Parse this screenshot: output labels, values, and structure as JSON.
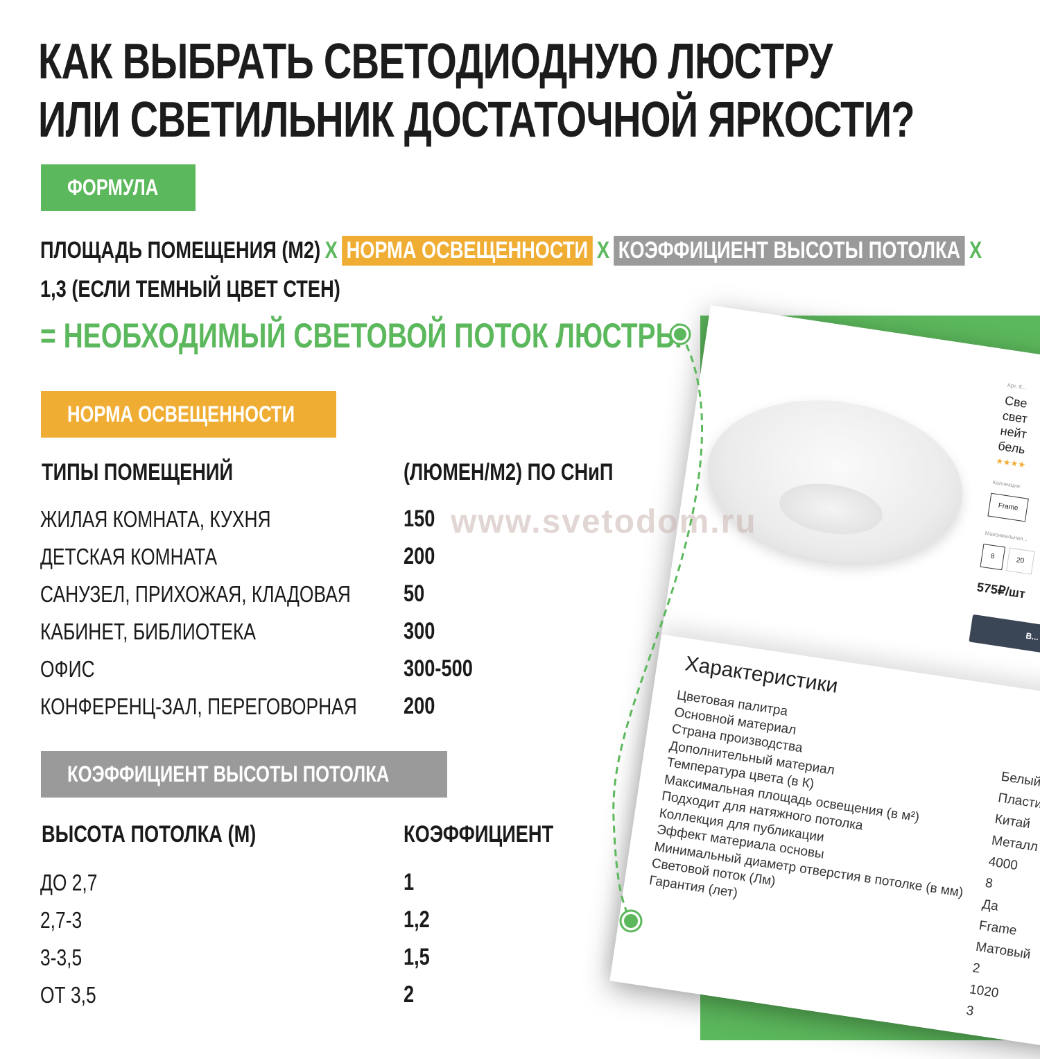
{
  "title": {
    "line1": "КАК ВЫБРАТЬ СВЕТОДИОДНУЮ ЛЮСТРУ",
    "line2": "ИЛИ СВЕТИЛЬНИК ДОСТАТОЧНОЙ ЯРКОСТИ?"
  },
  "colors": {
    "green": "#5cb85c",
    "orange": "#f0ad33",
    "gray": "#9a9a9a"
  },
  "formula": {
    "tag": "ФОРМУЛА",
    "area": "ПЛОЩАДЬ ПОМЕЩЕНИЯ (М2)",
    "times": "Х",
    "norm": "НОРМА ОСВЕЩЕННОСТИ",
    "coef": "КОЭФФИЦИЕНТ ВЫСОТЫ ПОТОЛКА",
    "line2": "1,3 (ЕСЛИ ТЕМНЫЙ ЦВЕТ СТЕН)",
    "result": "= НЕОБХОДИМЫЙ СВЕТОВОЙ ПОТОК ЛЮСТРЫ"
  },
  "norm_table": {
    "tag": "НОРМА ОСВЕЩЕННОСТИ",
    "headers": [
      "ТИПЫ ПОМЕЩЕНИЙ",
      "(ЛЮМЕН/М2) ПО СНиП"
    ],
    "rows": [
      [
        "ЖИЛАЯ КОМНАТА, КУХНЯ",
        "150"
      ],
      [
        "ДЕТСКАЯ КОМНАТА",
        "200"
      ],
      [
        "САНУЗЕЛ, ПРИХОЖАЯ, КЛАДОВАЯ",
        "50"
      ],
      [
        "КАБИНЕТ, БИБЛИОТЕКА",
        "300"
      ],
      [
        "ОФИС",
        "300-500"
      ],
      [
        "КОНФЕРЕНЦ-ЗАЛ, ПЕРЕГОВОРНАЯ",
        "200"
      ]
    ]
  },
  "coef_table": {
    "tag": "КОЭФФИЦИЕНТ ВЫСОТЫ ПОТОЛКА",
    "headers": [
      "ВЫСОТА ПОТОЛКА (М)",
      "КОЭФФИЦИЕНТ"
    ],
    "rows": [
      [
        "ДО 2,7",
        "1"
      ],
      [
        "2,7-3",
        "1,2"
      ],
      [
        "3-3,5",
        "1,5"
      ],
      [
        "ОТ 3,5",
        "2"
      ]
    ]
  },
  "watermark": "www.svetodom.ru",
  "product": {
    "article": "Арт. 8...",
    "name_lines": [
      "Све",
      "свет",
      "нейт",
      "бель"
    ],
    "rating_stars": "★★★★",
    "collection_label": "Коллекция:",
    "collection_value": "Frame",
    "max_label": "Максимальная...",
    "options": [
      "8",
      "20"
    ],
    "price": "575₽/шт",
    "buy_label": "В..."
  },
  "specs": {
    "title": "Характеристики",
    "labels": [
      "Цветовая палитра",
      "Основной материал",
      "Страна производства",
      "Дополнительный материал",
      "Температура цвета (в К)",
      "Максимальная площадь освещения (в м²)",
      "Подходит для натяжного потолка",
      "Коллекция для публикации",
      "Эффект материала основы",
      "Минимальный диаметр отверстия в потолке (в мм)",
      "Световой поток (Лм)",
      "Гарантия (лет)"
    ],
    "values": [
      "Белый",
      "Пластик",
      "Китай",
      "Металл",
      "4000",
      "8",
      "Да",
      "Frame",
      "Матовый",
      "2",
      "1020",
      "3"
    ]
  }
}
